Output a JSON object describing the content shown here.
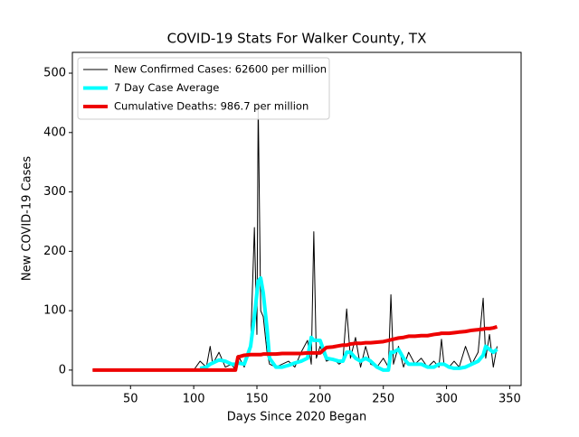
{
  "chart_data": {
    "type": "line",
    "title": "COVID-19 Stats For Walker County, TX",
    "x_label": "Days Since 2020 Began",
    "y_label": "New COVID-19 Cases",
    "x": [
      20,
      40,
      60,
      80,
      100,
      105,
      110,
      113,
      115,
      120,
      125,
      130,
      133,
      135,
      140,
      145,
      148,
      150,
      151,
      153,
      155,
      158,
      160,
      165,
      170,
      175,
      180,
      185,
      190,
      193,
      195,
      197,
      200,
      205,
      210,
      215,
      218,
      221,
      224,
      228,
      232,
      236,
      240,
      245,
      250,
      254,
      256,
      258,
      262,
      266,
      270,
      275,
      280,
      285,
      290,
      294,
      296,
      298,
      302,
      306,
      310,
      315,
      320,
      325,
      329,
      331,
      334,
      337,
      340
    ],
    "series": [
      {
        "name": "New Confirmed Cases: 62600 per million",
        "color": "#000000",
        "width": 1,
        "values": [
          0,
          0,
          0,
          0,
          0,
          15,
          5,
          40,
          10,
          30,
          5,
          10,
          0,
          25,
          5,
          40,
          240,
          60,
          450,
          100,
          90,
          30,
          10,
          5,
          10,
          15,
          5,
          30,
          50,
          10,
          233,
          20,
          40,
          15,
          20,
          10,
          15,
          103,
          20,
          55,
          5,
          40,
          10,
          5,
          20,
          5,
          127,
          10,
          40,
          5,
          30,
          10,
          20,
          5,
          15,
          5,
          52,
          10,
          5,
          15,
          5,
          40,
          10,
          30,
          121,
          20,
          60,
          5,
          40
        ]
      },
      {
        "name": "7 Day Case Average",
        "color": "#00ffff",
        "width": 4,
        "values": [
          null,
          null,
          null,
          null,
          null,
          3,
          5,
          10,
          12,
          17,
          15,
          10,
          10,
          12,
          10,
          40,
          90,
          130,
          150,
          155,
          130,
          70,
          20,
          5,
          5,
          8,
          12,
          15,
          20,
          55,
          50,
          50,
          50,
          20,
          18,
          15,
          15,
          30,
          30,
          20,
          15,
          20,
          15,
          5,
          0,
          0,
          30,
          30,
          35,
          20,
          10,
          10,
          10,
          5,
          5,
          10,
          10,
          10,
          5,
          3,
          3,
          5,
          10,
          15,
          25,
          40,
          35,
          30,
          35
        ]
      },
      {
        "name": "Cumulative Deaths: 986.7 per million",
        "color": "#ee0000",
        "width": 4,
        "values": [
          0,
          0,
          0,
          0,
          0,
          0,
          0,
          0,
          0,
          0,
          0,
          0,
          0,
          22,
          25,
          26,
          26,
          26,
          26,
          26,
          27,
          27,
          27,
          27,
          28,
          28,
          28,
          28,
          29,
          29,
          29,
          29,
          29,
          38,
          39,
          41,
          42,
          42,
          44,
          45,
          45,
          46,
          46,
          47,
          48,
          50,
          51,
          52,
          54,
          55,
          57,
          57,
          58,
          58,
          60,
          61,
          62,
          62,
          62,
          63,
          64,
          65,
          67,
          68,
          69,
          70,
          70,
          71,
          73
        ]
      }
    ],
    "xlim": [
      4,
      359
    ],
    "ylim": [
      -26,
      535
    ],
    "xticks": [
      50,
      100,
      150,
      200,
      250,
      300,
      350
    ],
    "yticks": [
      0,
      100,
      200,
      300,
      400,
      500
    ],
    "legend": "upper left"
  }
}
